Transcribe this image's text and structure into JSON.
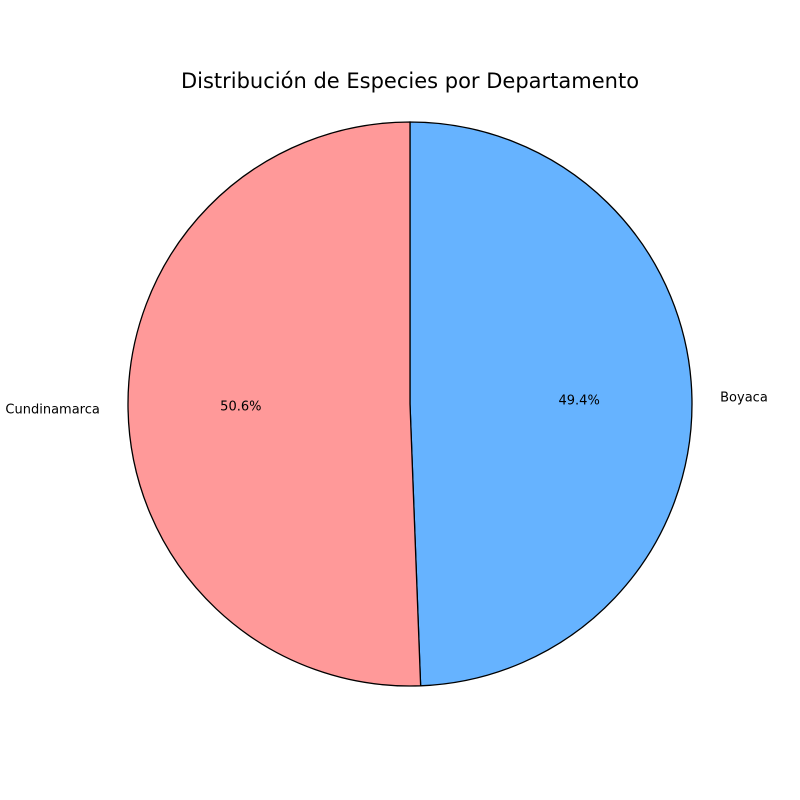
{
  "chart_data": {
    "type": "pie",
    "title": "Distribución de Especies por Departamento",
    "slices": [
      {
        "label": "Boyaca",
        "value": 49.4,
        "pct_label": "49.4%",
        "color": "#66b3ff"
      },
      {
        "label": "Cundinamarca",
        "value": 50.6,
        "pct_label": "50.6%",
        "color": "#ff9999"
      }
    ],
    "start_angle_deg": 90,
    "direction": "clockwise",
    "legend": "none"
  }
}
